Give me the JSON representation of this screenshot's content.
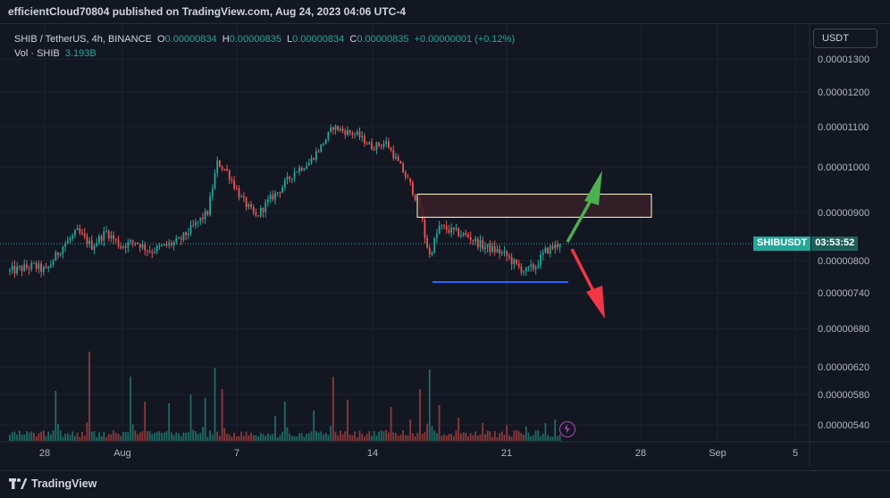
{
  "publisher": "efficientCloud70804 published on TradingView.com, Aug 24, 2023 04:06 UTC-4",
  "legend": {
    "symbol": "SHIB / TetherUS, 4h, BINANCE",
    "o_label": "O",
    "o_value": "0.00000834",
    "h_label": "H",
    "h_value": "0.00000835",
    "l_label": "L",
    "l_value": "0.00000834",
    "c_label": "C",
    "c_value": "0.00000835",
    "change": "+0.00000001 (+0.12%)",
    "vol_label": "Vol · SHIB",
    "vol_value": "3.193B"
  },
  "unit_button": "USDT",
  "price_tag": {
    "symbol": "SHIBUSDT",
    "countdown": "03:53:52"
  },
  "footer": {
    "brand": "TradingView"
  },
  "colors": {
    "up": "#26a69a",
    "down": "#ef5350",
    "background": "#131722",
    "grid": "#1e222d",
    "support_line": "#2962ff",
    "arrow_up": "#4caf50",
    "arrow_down": "#f23645",
    "zone_border": "#ffffcc",
    "zone_fill": "#3a1f28"
  },
  "chart_data": {
    "type": "candlestick",
    "interval": "4h",
    "ylim": [
      5.2e-06,
      1.34e-05
    ],
    "yticks": [
      "0.00001300",
      "0.00001200",
      "0.00001100",
      "0.00001000",
      "0.00000900",
      "0.00000800",
      "0.00000740",
      "0.00000680",
      "0.00000620",
      "0.00000580",
      "0.00000540"
    ],
    "xticks": [
      "28",
      "Aug",
      "7",
      "14",
      "21",
      "28",
      "Sep",
      "5"
    ],
    "last_price": 8.35e-06,
    "annotations": {
      "resistance_zone": [
        8.9e-06,
        9.4e-06
      ],
      "support_line": 7.6e-06,
      "arrow_up": "bullish scenario",
      "arrow_down": "bearish scenario"
    },
    "price_path": [
      [
        0,
        7.8e-06
      ],
      [
        10,
        7.9e-06
      ],
      [
        15,
        7.8e-06
      ],
      [
        22,
        8.3e-06
      ],
      [
        28,
        8.6e-06
      ],
      [
        34,
        8.3e-06
      ],
      [
        40,
        8.6e-06
      ],
      [
        46,
        8.3e-06
      ],
      [
        52,
        8.4e-06
      ],
      [
        58,
        8.2e-06
      ],
      [
        64,
        8.3e-06
      ],
      [
        70,
        8.4e-06
      ],
      [
        76,
        8.7e-06
      ],
      [
        82,
        9e-06
      ],
      [
        86,
        1.01e-05
      ],
      [
        90,
        9.9e-06
      ],
      [
        96,
        9.3e-06
      ],
      [
        102,
        8.9e-06
      ],
      [
        108,
        9.3e-06
      ],
      [
        112,
        9.5e-06
      ],
      [
        118,
        9.9e-06
      ],
      [
        124,
        1.01e-05
      ],
      [
        130,
        1.06e-05
      ],
      [
        134,
        1.1e-05
      ],
      [
        138,
        1.09e-05
      ],
      [
        144,
        1.08e-05
      ],
      [
        150,
        1.05e-05
      ],
      [
        156,
        1.06e-05
      ],
      [
        160,
        1.02e-05
      ],
      [
        166,
        9.6e-06
      ],
      [
        170,
        9.1e-06
      ],
      [
        172,
        8.5e-06
      ],
      [
        174,
        8.1e-06
      ],
      [
        178,
        8.7e-06
      ],
      [
        184,
        8.6e-06
      ],
      [
        190,
        8.5e-06
      ],
      [
        196,
        8.3e-06
      ],
      [
        202,
        8.2e-06
      ],
      [
        206,
        8.1e-06
      ],
      [
        210,
        7.9e-06
      ],
      [
        214,
        7.8e-06
      ],
      [
        218,
        7.9e-06
      ],
      [
        222,
        8.2e-06
      ],
      [
        226,
        8.3e-06
      ],
      [
        228,
        8.35e-06
      ]
    ],
    "volume_spikes": [
      [
        19,
        0.56
      ],
      [
        33,
        1.0
      ],
      [
        50,
        0.72
      ],
      [
        56,
        0.44
      ],
      [
        66,
        0.42
      ],
      [
        75,
        0.52
      ],
      [
        81,
        0.48
      ],
      [
        85,
        0.82
      ],
      [
        88,
        0.58
      ],
      [
        110,
        0.28
      ],
      [
        114,
        0.44
      ],
      [
        126,
        0.34
      ],
      [
        134,
        0.72
      ],
      [
        140,
        0.46
      ],
      [
        158,
        0.38
      ],
      [
        166,
        0.24
      ],
      [
        170,
        0.58
      ],
      [
        174,
        0.8
      ],
      [
        178,
        0.4
      ],
      [
        186,
        0.26
      ],
      [
        196,
        0.2
      ],
      [
        206,
        0.18
      ],
      [
        214,
        0.16
      ],
      [
        222,
        0.2
      ],
      [
        226,
        0.24
      ]
    ]
  }
}
